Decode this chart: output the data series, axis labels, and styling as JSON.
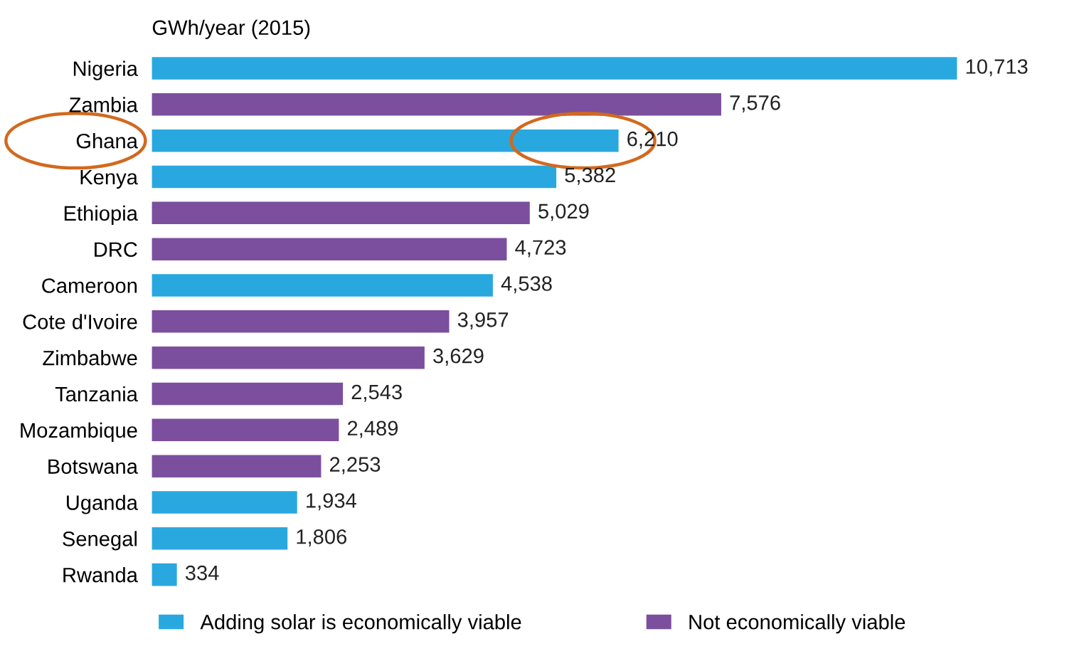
{
  "chart_data": {
    "type": "bar",
    "orientation": "horizontal",
    "xlabel": "GWh/year (2015)",
    "categories": [
      "Nigeria",
      "Zambia",
      "Ghana",
      "Kenya",
      "Ethiopia",
      "DRC",
      "Cameroon",
      "Cote d'Ivoire",
      "Zimbabwe",
      "Tanzania",
      "Mozambique",
      "Botswana",
      "Uganda",
      "Senegal",
      "Rwanda"
    ],
    "series": [
      {
        "name": "Adding solar is economically viable",
        "color": "#29a8e0",
        "values": [
          10713,
          null,
          6210,
          5382,
          null,
          null,
          4538,
          null,
          null,
          null,
          null,
          null,
          1934,
          1806,
          334
        ],
        "value_labels": [
          "10,713",
          null,
          "6,210",
          "5,382",
          null,
          null,
          "4,538",
          null,
          null,
          null,
          null,
          null,
          "1,934",
          "1,806",
          "334"
        ]
      },
      {
        "name": "Not economically viable",
        "color": "#7b4f9e",
        "values": [
          null,
          7576,
          null,
          null,
          5029,
          4723,
          null,
          3957,
          3629,
          2543,
          2489,
          2253,
          null,
          null,
          null
        ],
        "value_labels": [
          null,
          "7,576",
          null,
          null,
          "5,029",
          "4,723",
          null,
          "3,957",
          "3,629",
          "2,543",
          "2,489",
          "2,253",
          null,
          null,
          null
        ]
      }
    ],
    "legend": "bottom",
    "tick_labels": "y",
    "grid": false
  }
}
